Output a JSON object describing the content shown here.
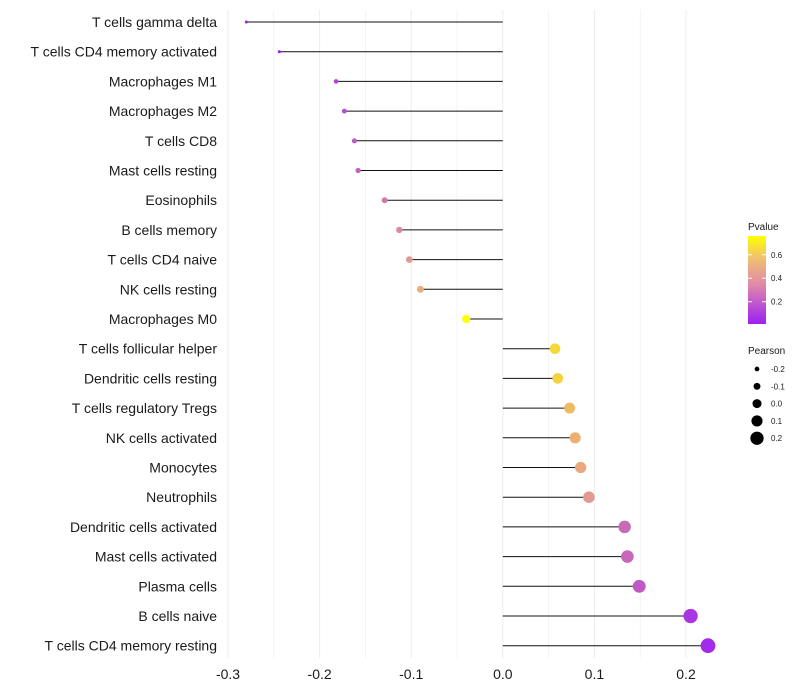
{
  "chart_data": {
    "type": "lollipop",
    "title": "",
    "xlabel": "",
    "ylabel": "",
    "xlim": [
      -0.3,
      0.2
    ],
    "xticks": [
      "-0.3",
      "-0.2",
      "-0.1",
      "0.0",
      "0.1",
      "0.2"
    ],
    "xtick_values": [
      -0.3,
      -0.2,
      -0.1,
      0.0,
      0.1,
      0.2
    ],
    "grid": "vertical",
    "points": [
      {
        "category": "T cells gamma delta",
        "pearson": -0.28,
        "pvalue": 0.01
      },
      {
        "category": "T cells CD4 memory activated",
        "pearson": -0.244,
        "pvalue": 0.03
      },
      {
        "category": "Macrophages M1",
        "pearson": -0.182,
        "pvalue": 0.13
      },
      {
        "category": "Macrophages M2",
        "pearson": -0.173,
        "pvalue": 0.16
      },
      {
        "category": "T cells CD8",
        "pearson": -0.162,
        "pvalue": 0.2
      },
      {
        "category": "Mast cells resting",
        "pearson": -0.158,
        "pvalue": 0.22
      },
      {
        "category": "Eosinophils",
        "pearson": -0.129,
        "pvalue": 0.3
      },
      {
        "category": "B cells memory",
        "pearson": -0.113,
        "pvalue": 0.35
      },
      {
        "category": "T cells CD4 naive",
        "pearson": -0.102,
        "pvalue": 0.4
      },
      {
        "category": "NK cells resting",
        "pearson": -0.09,
        "pvalue": 0.46
      },
      {
        "category": "Macrophages M0",
        "pearson": -0.04,
        "pvalue": 0.76
      },
      {
        "category": "T cells follicular helper",
        "pearson": 0.057,
        "pvalue": 0.62
      },
      {
        "category": "Dendritic cells resting",
        "pearson": 0.06,
        "pvalue": 0.6
      },
      {
        "category": "T cells regulatory  Tregs",
        "pearson": 0.073,
        "pvalue": 0.52
      },
      {
        "category": "NK cells activated",
        "pearson": 0.079,
        "pvalue": 0.48
      },
      {
        "category": "Monocytes",
        "pearson": 0.085,
        "pvalue": 0.45
      },
      {
        "category": "Neutrophils",
        "pearson": 0.094,
        "pvalue": 0.4
      },
      {
        "category": "Dendritic cells activated",
        "pearson": 0.133,
        "pvalue": 0.25
      },
      {
        "category": "Mast cells activated",
        "pearson": 0.136,
        "pvalue": 0.24
      },
      {
        "category": "Plasma cells",
        "pearson": 0.149,
        "pvalue": 0.2
      },
      {
        "category": "B cells naive",
        "pearson": 0.205,
        "pvalue": 0.08
      },
      {
        "category": "T cells CD4 memory resting",
        "pearson": 0.224,
        "pvalue": 0.05
      }
    ],
    "legend_pvalue": {
      "title": "Pvalue",
      "labels": [
        "0.6",
        "0.4",
        "0.2"
      ],
      "values": [
        0.6,
        0.4,
        0.2
      ],
      "range": [
        0.01,
        0.76
      ],
      "color_low": "#9c1ff5",
      "color_mid": "#e8a08a",
      "color_high": "#ffff00"
    },
    "legend_pearson": {
      "title": "Pearson",
      "labels": [
        "-0.2",
        "-0.1",
        "0.0",
        "0.1",
        "0.2"
      ],
      "values": [
        -0.2,
        -0.1,
        0.0,
        0.1,
        0.2
      ]
    }
  }
}
